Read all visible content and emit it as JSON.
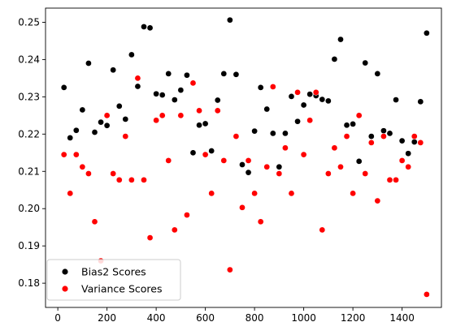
{
  "chart_data": {
    "type": "scatter",
    "title": "",
    "xlabel": "",
    "ylabel": "",
    "xlim": [
      -50,
      1560
    ],
    "ylim": [
      0.1735,
      0.2538
    ],
    "xticks": [
      0,
      200,
      400,
      600,
      800,
      1000,
      1200,
      1400
    ],
    "yticks": [
      0.18,
      0.19,
      0.2,
      0.21,
      0.22,
      0.23,
      0.24,
      0.25
    ],
    "ytick_labels": [
      "0.18",
      "0.19",
      "0.20",
      "0.21",
      "0.22",
      "0.23",
      "0.24",
      "0.25"
    ],
    "grid": false,
    "legend_position": "lower-left",
    "series": [
      {
        "name": "Bias2 Scores",
        "color": "#000000",
        "x": [
          25,
          50,
          75,
          100,
          125,
          150,
          175,
          200,
          225,
          250,
          275,
          300,
          325,
          350,
          375,
          400,
          425,
          450,
          475,
          500,
          525,
          550,
          575,
          600,
          625,
          650,
          675,
          700,
          725,
          750,
          775,
          800,
          825,
          850,
          875,
          900,
          925,
          950,
          975,
          1000,
          1025,
          1050,
          1075,
          1100,
          1125,
          1150,
          1175,
          1200,
          1225,
          1250,
          1275,
          1300,
          1325,
          1350,
          1375,
          1400,
          1425,
          1450,
          1475,
          1500
        ],
        "y": [
          0.2325,
          0.219,
          0.221,
          0.2265,
          0.239,
          0.2205,
          0.2232,
          0.2223,
          0.2372,
          0.2275,
          0.224,
          0.2413,
          0.2328,
          0.2488,
          0.2485,
          0.2308,
          0.2305,
          0.2362,
          0.2292,
          0.2318,
          0.2358,
          0.215,
          0.2224,
          0.2228,
          0.2155,
          0.2291,
          0.2362,
          0.2506,
          0.236,
          0.2118,
          0.2097,
          0.2208,
          0.2325,
          0.2267,
          0.2202,
          0.2112,
          0.2202,
          0.2301,
          0.2234,
          0.2278,
          0.2307,
          0.2303,
          0.2293,
          0.2289,
          0.2401,
          0.2454,
          0.2224,
          0.2227,
          0.2127,
          0.2391,
          0.2194,
          0.2362,
          0.2209,
          0.2202,
          0.2292,
          0.2182,
          0.2148,
          0.2179,
          0.2287,
          0.2471
        ]
      },
      {
        "name": "Variance Scores",
        "color": "#ff0000",
        "x": [
          25,
          50,
          75,
          100,
          125,
          150,
          175,
          200,
          225,
          250,
          275,
          300,
          325,
          350,
          375,
          400,
          425,
          450,
          475,
          500,
          525,
          550,
          575,
          600,
          625,
          650,
          675,
          700,
          725,
          750,
          775,
          800,
          825,
          850,
          875,
          900,
          925,
          950,
          975,
          1000,
          1025,
          1050,
          1075,
          1100,
          1125,
          1150,
          1175,
          1200,
          1225,
          1250,
          1275,
          1300,
          1325,
          1350,
          1375,
          1400,
          1425,
          1450,
          1475,
          1500
        ],
        "y": [
          0.2145,
          0.2041,
          0.2145,
          0.2112,
          0.2094,
          0.1965,
          0.186,
          0.225,
          0.2094,
          0.2077,
          0.2194,
          0.2077,
          0.235,
          0.2077,
          0.1922,
          0.2237,
          0.225,
          0.2129,
          0.1943,
          0.225,
          0.1983,
          0.2337,
          0.2263,
          0.2145,
          0.2041,
          0.2263,
          0.2129,
          0.1836,
          0.2194,
          0.2003,
          0.2129,
          0.2041,
          0.1965,
          0.2112,
          0.2327,
          0.2094,
          0.2163,
          0.2041,
          0.2312,
          0.2145,
          0.2237,
          0.2312,
          0.1943,
          0.2094,
          0.2163,
          0.2112,
          0.2194,
          0.2041,
          0.225,
          0.2094,
          0.2177,
          0.2021,
          0.2194,
          0.2077,
          0.2077,
          0.2129,
          0.2112,
          0.2194,
          0.2177,
          0.177
        ]
      }
    ]
  }
}
